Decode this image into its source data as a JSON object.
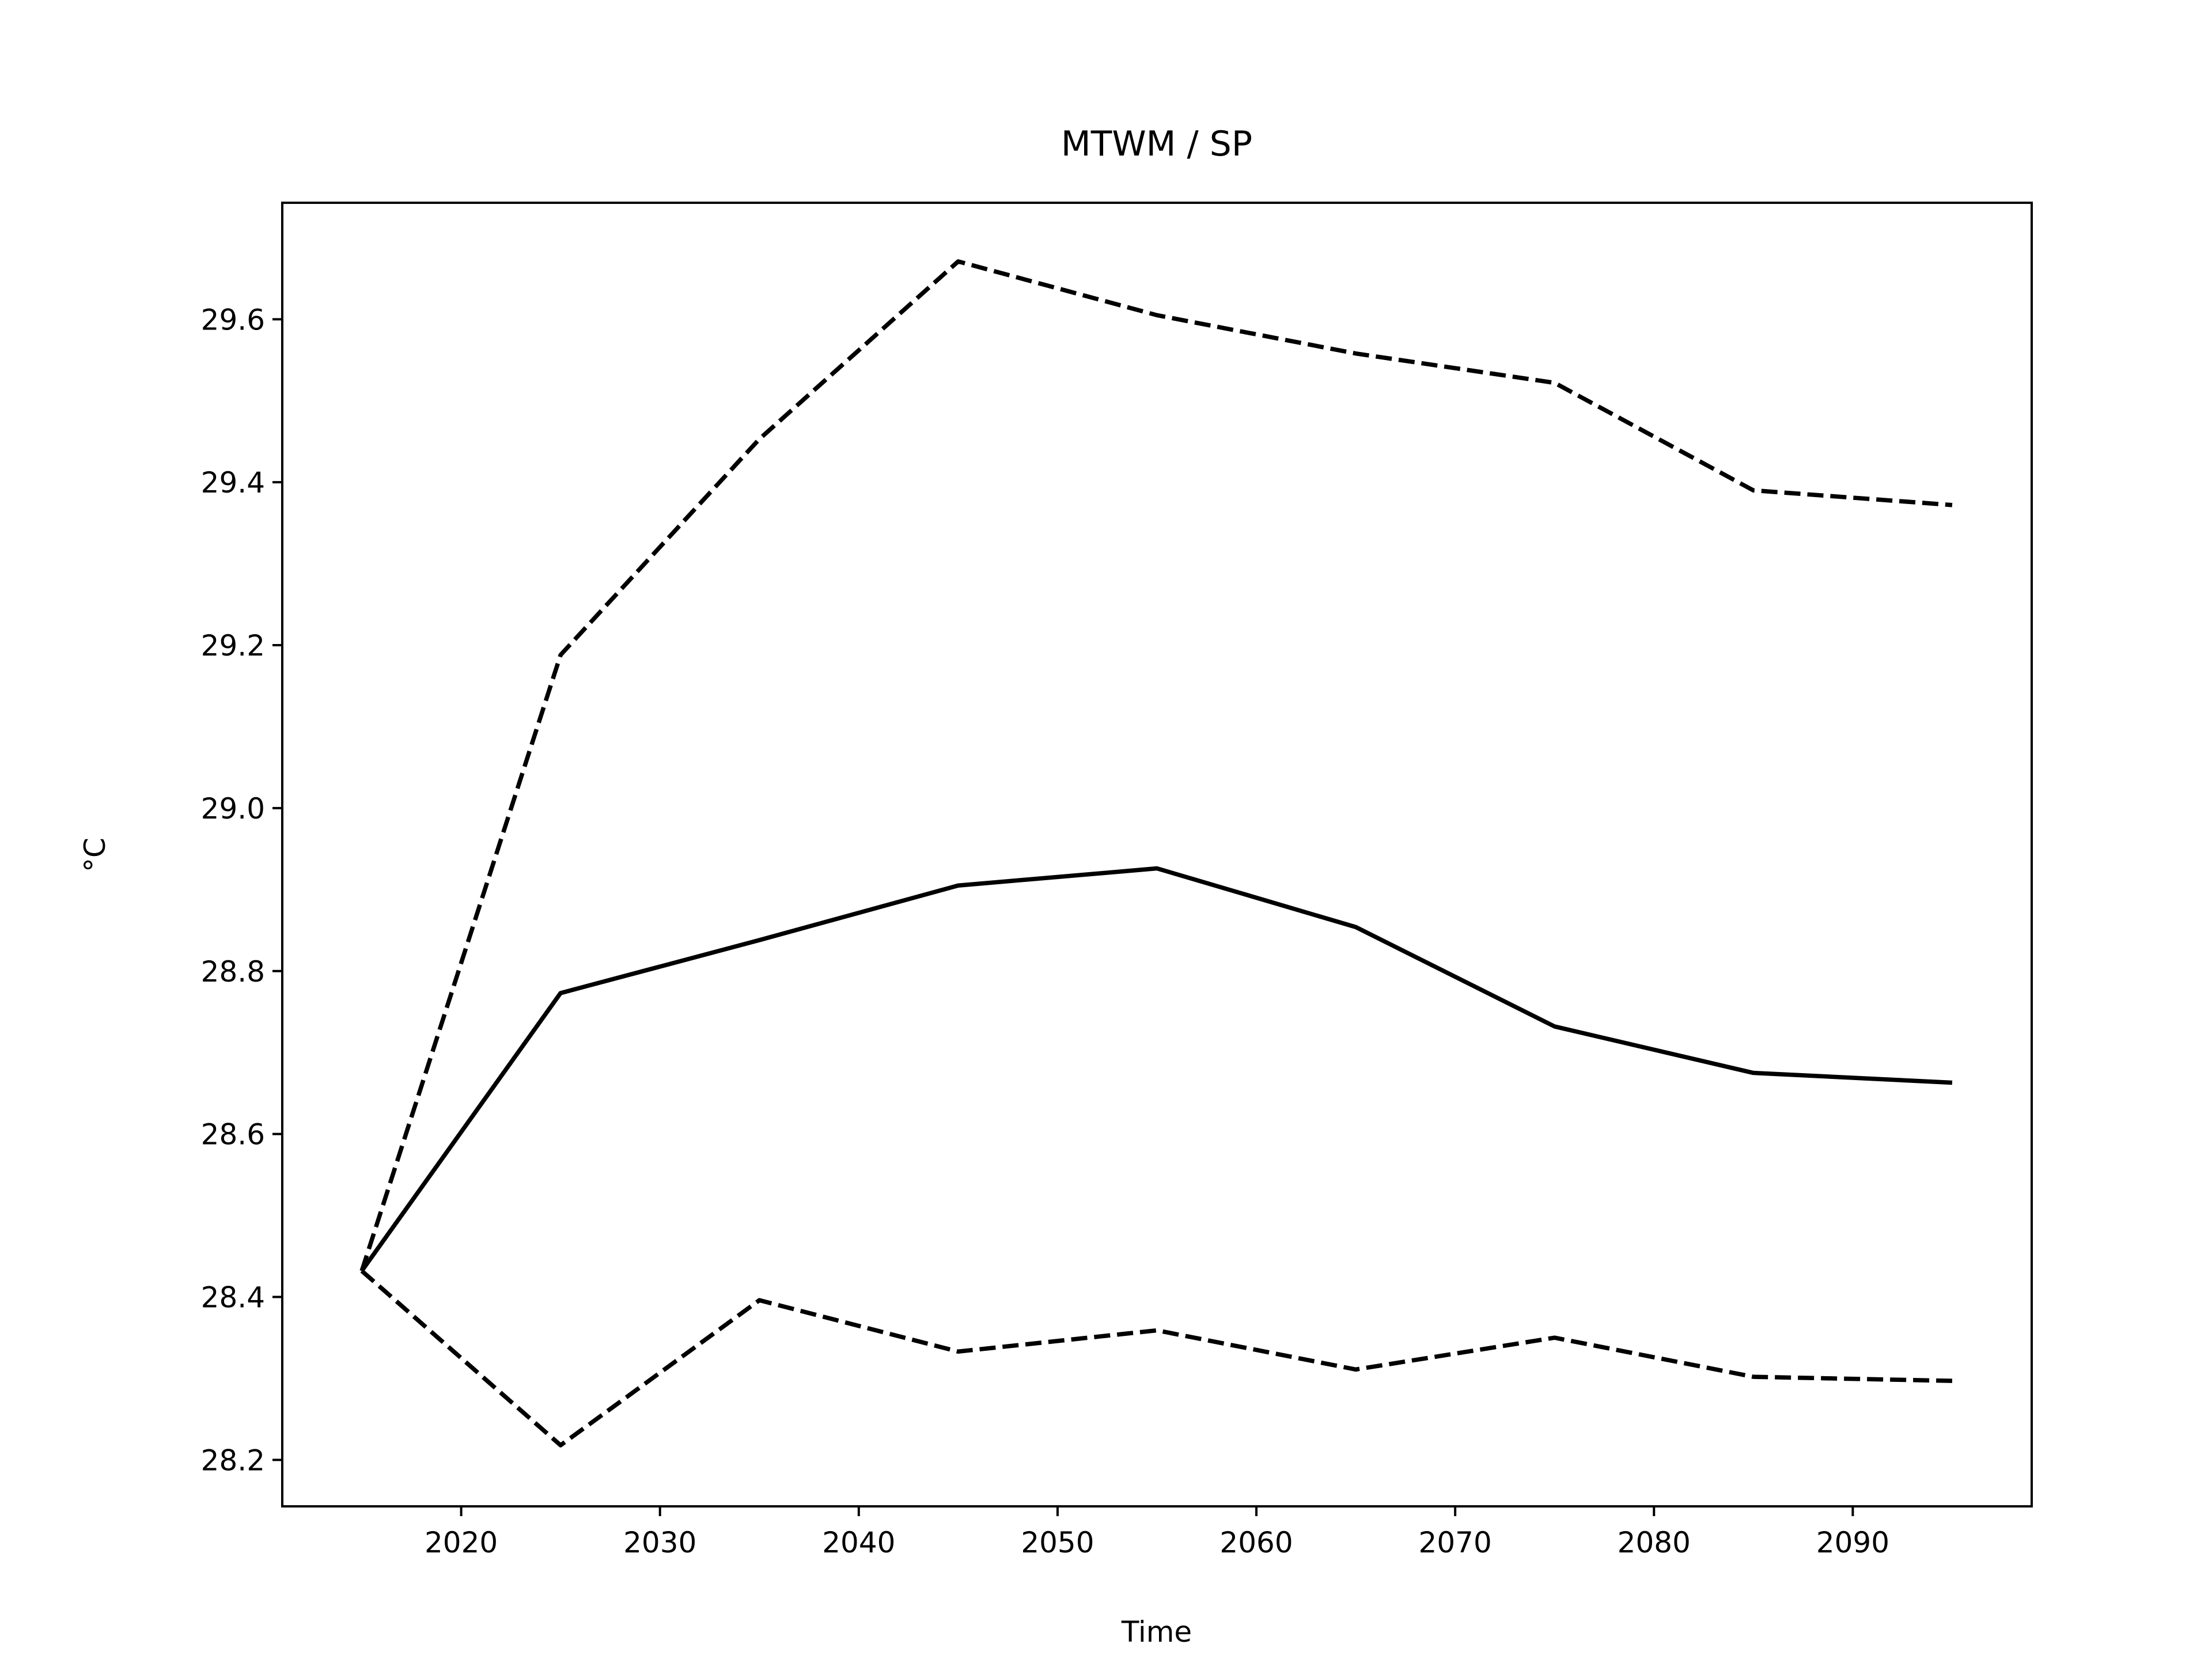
{
  "chart_data": {
    "type": "line",
    "title": "MTWM / SP",
    "xlabel": "Time",
    "ylabel": "°C",
    "x": [
      2015,
      2025,
      2035,
      2045,
      2055,
      2065,
      2075,
      2085,
      2095
    ],
    "series": [
      {
        "color": "#000000",
        "dash": false,
        "values": [
          28.432,
          28.773,
          28.838,
          28.905,
          28.926,
          28.854,
          28.732,
          28.675,
          28.663
        ]
      },
      {
        "color": "#000000",
        "dash": true,
        "values": [
          28.432,
          29.188,
          29.453,
          29.671,
          29.605,
          29.558,
          29.522,
          29.39,
          29.372
        ]
      },
      {
        "color": "#000000",
        "dash": true,
        "values": [
          28.432,
          28.218,
          28.396,
          28.333,
          28.359,
          28.311,
          28.35,
          28.302,
          28.297
        ]
      }
    ],
    "xlim": [
      2011,
      2099
    ],
    "ylim": [
      28.143,
      29.743
    ],
    "xticks": [
      2020,
      2030,
      2040,
      2050,
      2060,
      2070,
      2080,
      2090
    ],
    "yticks": [
      28.2,
      28.4,
      28.6,
      28.8,
      {
        "value": 29,
        "label": "29.0"
      },
      29.2,
      29.4,
      29.6
    ],
    "grid": false
  }
}
